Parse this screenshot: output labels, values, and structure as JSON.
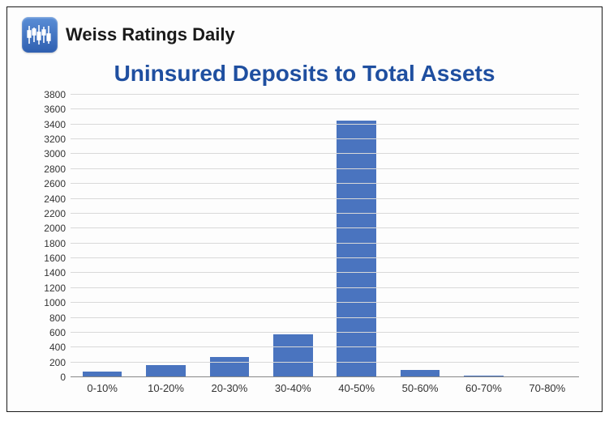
{
  "brand": "Weiss Ratings Daily",
  "chart": {
    "type": "bar",
    "title": "Uninsured Deposits to Total Assets",
    "title_color": "#1f4fa0",
    "title_fontsize": 28,
    "categories": [
      "0-10%",
      "10-20%",
      "20-30%",
      "30-40%",
      "40-50%",
      "50-60%",
      "60-70%",
      "70-80%"
    ],
    "values": [
      80,
      160,
      270,
      580,
      3450,
      100,
      20,
      15
    ],
    "bar_color": "#4a74bf",
    "ylim": [
      0,
      3800
    ],
    "ytick_step": 200,
    "grid_color": "#d9d9d9",
    "axis_color": "#888888",
    "background_color": "#fdfdfd",
    "label_fontsize": 13,
    "tick_fontsize": 12,
    "bar_width": 0.62
  }
}
